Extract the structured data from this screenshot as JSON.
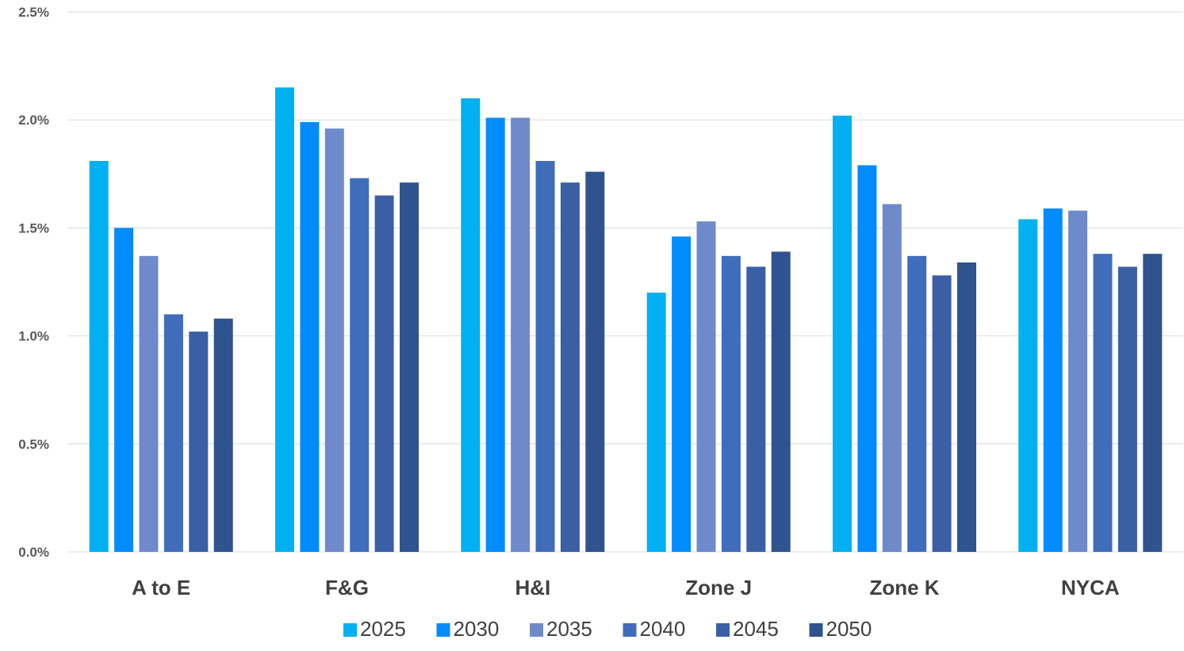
{
  "chart_data": {
    "type": "bar",
    "title": "",
    "xlabel": "",
    "ylabel": "",
    "categories": [
      "A to E",
      "F&G",
      "H&I",
      "Zone J",
      "Zone K",
      "NYCA"
    ],
    "y_tick_values": [
      0,
      0.5,
      1.0,
      1.5,
      2.0,
      2.5
    ],
    "y_tick_labels": [
      "0.0%",
      "0.5%",
      "1.0%",
      "1.5%",
      "2.0%",
      "2.5%"
    ],
    "ylim": [
      0,
      2.5
    ],
    "y_unit": "%",
    "grid": true,
    "legend_position": "bottom",
    "series": [
      {
        "name": "2025",
        "color": "#00b0f0",
        "values": [
          1.81,
          2.15,
          2.1,
          1.2,
          2.02,
          1.54
        ]
      },
      {
        "name": "2030",
        "color": "#008cff",
        "values": [
          1.5,
          1.99,
          2.01,
          1.46,
          1.79,
          1.59
        ]
      },
      {
        "name": "2035",
        "color": "#6f8acb",
        "values": [
          1.37,
          1.96,
          2.01,
          1.53,
          1.61,
          1.58
        ]
      },
      {
        "name": "2040",
        "color": "#406cbc",
        "values": [
          1.1,
          1.73,
          1.81,
          1.37,
          1.37,
          1.38
        ]
      },
      {
        "name": "2045",
        "color": "#3a5fa5",
        "values": [
          1.02,
          1.65,
          1.71,
          1.32,
          1.28,
          1.32
        ]
      },
      {
        "name": "2050",
        "color": "#2f538e",
        "values": [
          1.08,
          1.71,
          1.76,
          1.39,
          1.34,
          1.38
        ]
      }
    ]
  }
}
